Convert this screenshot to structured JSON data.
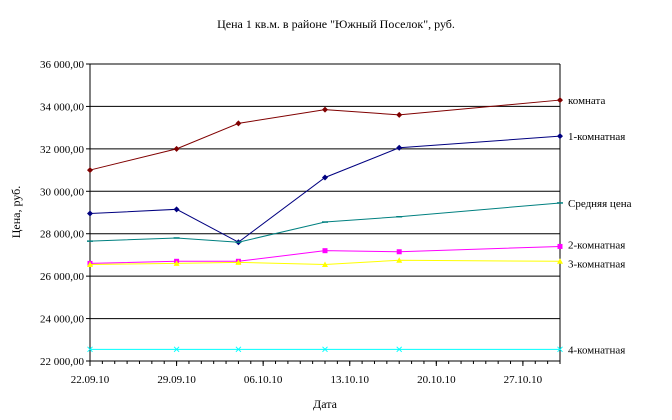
{
  "chart_data": {
    "type": "line",
    "title": "Цена 1 кв.м. в районе \"Южный Поселок\", руб.",
    "xlabel": "Дата",
    "ylabel": "Цена, руб.",
    "ylim": [
      22000,
      36000
    ],
    "yticks": [
      22000,
      24000,
      26000,
      28000,
      30000,
      32000,
      34000,
      36000
    ],
    "ytick_labels": [
      "22 000,00",
      "24 000,00",
      "26 000,00",
      "28 000,00",
      "30 000,00",
      "32 000,00",
      "34 000,00",
      "36 000,00"
    ],
    "xlim": [
      "2010-09-22",
      "2010-10-30"
    ],
    "xticks": [
      "2010-09-22",
      "2010-09-29",
      "2010-10-06",
      "2010-10-13",
      "2010-10-20",
      "2010-10-27"
    ],
    "xtick_labels": [
      "22.09.10",
      "29.09.10",
      "06.10.10",
      "13.10.10",
      "20.10.10",
      "27.10.10"
    ],
    "grid": "horizontal",
    "legend": "series labels at right end of lines",
    "series": [
      {
        "name": "комната",
        "color": "#800000",
        "marker": "diamond",
        "points": [
          {
            "x": "2010-09-22",
            "y": 31000
          },
          {
            "x": "2010-09-29",
            "y": 32000
          },
          {
            "x": "2010-10-04",
            "y": 33200
          },
          {
            "x": "2010-10-11",
            "y": 33850
          },
          {
            "x": "2010-10-17",
            "y": 33600
          },
          {
            "x": "2010-10-30",
            "y": 34300
          }
        ]
      },
      {
        "name": "1-комнатная",
        "color": "#000080",
        "marker": "diamond",
        "points": [
          {
            "x": "2010-09-22",
            "y": 28950
          },
          {
            "x": "2010-09-29",
            "y": 29150
          },
          {
            "x": "2010-10-04",
            "y": 27600
          },
          {
            "x": "2010-10-11",
            "y": 30650
          },
          {
            "x": "2010-10-17",
            "y": 32050
          },
          {
            "x": "2010-10-30",
            "y": 32600
          }
        ]
      },
      {
        "name": "Средняя цена",
        "color": "#008080",
        "marker": "dash",
        "points": [
          {
            "x": "2010-09-22",
            "y": 27650
          },
          {
            "x": "2010-09-29",
            "y": 27800
          },
          {
            "x": "2010-10-04",
            "y": 27600
          },
          {
            "x": "2010-10-11",
            "y": 28550
          },
          {
            "x": "2010-10-17",
            "y": 28800
          },
          {
            "x": "2010-10-30",
            "y": 29450
          }
        ]
      },
      {
        "name": "2-комнатная",
        "color": "#ff00ff",
        "marker": "square",
        "points": [
          {
            "x": "2010-09-22",
            "y": 26600
          },
          {
            "x": "2010-09-29",
            "y": 26700
          },
          {
            "x": "2010-10-04",
            "y": 26700
          },
          {
            "x": "2010-10-11",
            "y": 27200
          },
          {
            "x": "2010-10-17",
            "y": 27150
          },
          {
            "x": "2010-10-30",
            "y": 27400
          }
        ]
      },
      {
        "name": "3-комнатная",
        "color": "#ffff00",
        "marker": "triangle",
        "points": [
          {
            "x": "2010-09-22",
            "y": 26550
          },
          {
            "x": "2010-09-29",
            "y": 26600
          },
          {
            "x": "2010-10-04",
            "y": 26650
          },
          {
            "x": "2010-10-11",
            "y": 26550
          },
          {
            "x": "2010-10-17",
            "y": 26750
          },
          {
            "x": "2010-10-30",
            "y": 26700
          }
        ]
      },
      {
        "name": "4-комнатная",
        "color": "#00ffff",
        "marker": "x",
        "points": [
          {
            "x": "2010-09-22",
            "y": 22550
          },
          {
            "x": "2010-09-29",
            "y": 22550
          },
          {
            "x": "2010-10-04",
            "y": 22550
          },
          {
            "x": "2010-10-11",
            "y": 22550
          },
          {
            "x": "2010-10-17",
            "y": 22550
          },
          {
            "x": "2010-10-30",
            "y": 22550
          }
        ]
      }
    ]
  }
}
